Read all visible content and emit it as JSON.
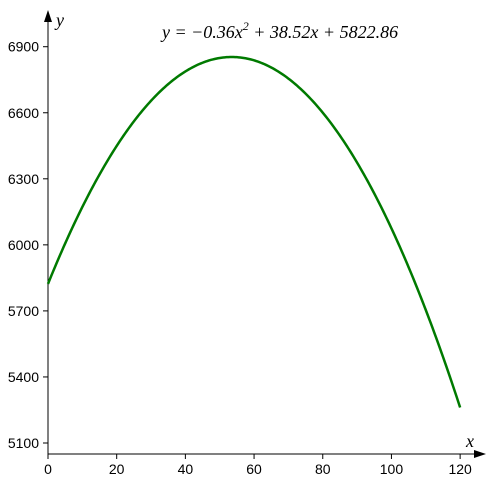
{
  "chart_data": {
    "type": "line",
    "equation": {
      "prefix": "y = −0.36x",
      "exponent": "2",
      "suffix": " + 38.52x + 5822.86",
      "a": -0.36,
      "b": 38.52,
      "c": 5822.86
    },
    "xlabel": "x",
    "ylabel": "y",
    "xlim": [
      0,
      122
    ],
    "ylim": [
      5050,
      6985
    ],
    "x_ticks": [
      0,
      20,
      40,
      60,
      80,
      100,
      120
    ],
    "y_ticks": [
      5100,
      5400,
      5700,
      6000,
      6300,
      6600,
      6900
    ],
    "domain": [
      0,
      120
    ],
    "grid": false,
    "series": [
      {
        "color": "#007a00",
        "x": [
          0,
          10,
          20,
          30,
          40,
          50,
          53.5,
          60,
          70,
          80,
          90,
          100,
          110,
          120
        ],
        "y": [
          5822.86,
          6172.06,
          6449.26,
          6654.46,
          6787.66,
          6848.86,
          6853.3,
          6838.06,
          6755.26,
          6600.46,
          6373.66,
          6074.86,
          5704.06,
          5261.26
        ]
      }
    ],
    "colors": {
      "axis": "#000000",
      "curve": "#007a00"
    }
  }
}
